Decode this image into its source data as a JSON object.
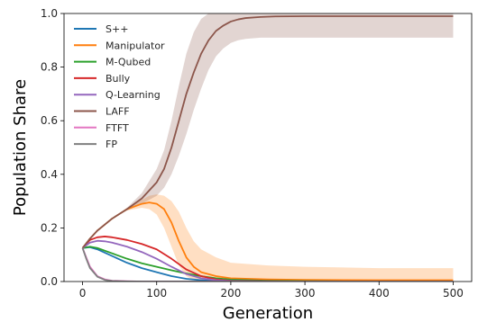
{
  "chart_data": {
    "type": "line",
    "xlabel": "Generation",
    "ylabel": "Population Share",
    "xlim": [
      -25,
      525
    ],
    "ylim": [
      0,
      1.0
    ],
    "xticks": [
      0,
      100,
      200,
      300,
      400,
      500
    ],
    "xtick_labels": [
      "0",
      "100",
      "200",
      "300",
      "400",
      "500"
    ],
    "yticks": [
      0,
      0.2,
      0.4,
      0.6,
      0.8,
      1.0
    ],
    "ytick_labels": [
      "0.0",
      "0.2",
      "0.4",
      "0.6",
      "0.8",
      "1.0"
    ],
    "grid": false,
    "legend_position": "top-left",
    "series": [
      {
        "name": "S++",
        "color": "#1f77b4",
        "x": [
          0,
          10,
          20,
          40,
          60,
          80,
          100,
          120,
          140,
          160,
          180,
          200,
          250,
          300,
          400,
          500
        ],
        "y": [
          0.125,
          0.128,
          0.12,
          0.095,
          0.07,
          0.05,
          0.035,
          0.02,
          0.01,
          0.005,
          0.002,
          0.001,
          0,
          0,
          0,
          0
        ],
        "band_lower": null,
        "band_upper": null
      },
      {
        "name": "Manipulator",
        "color": "#ff7f0e",
        "x": [
          0,
          10,
          20,
          40,
          60,
          80,
          90,
          100,
          110,
          120,
          130,
          140,
          150,
          160,
          180,
          200,
          250,
          300,
          400,
          500
        ],
        "y": [
          0.125,
          0.16,
          0.19,
          0.235,
          0.27,
          0.29,
          0.295,
          0.29,
          0.27,
          0.22,
          0.15,
          0.09,
          0.055,
          0.035,
          0.02,
          0.012,
          0.008,
          0.006,
          0.005,
          0.005
        ],
        "band_lower": [
          0.125,
          0.16,
          0.19,
          0.235,
          0.265,
          0.275,
          0.27,
          0.25,
          0.2,
          0.13,
          0.06,
          0.02,
          0.005,
          0.0,
          0.0,
          0.0,
          0.0,
          0.0,
          0.0,
          0.0
        ],
        "band_upper": [
          0.125,
          0.16,
          0.19,
          0.235,
          0.275,
          0.305,
          0.32,
          0.325,
          0.32,
          0.3,
          0.26,
          0.2,
          0.15,
          0.12,
          0.09,
          0.07,
          0.06,
          0.055,
          0.05,
          0.05
        ]
      },
      {
        "name": "M-Qubed",
        "color": "#2ca02c",
        "x": [
          0,
          10,
          20,
          40,
          60,
          80,
          100,
          120,
          140,
          160,
          180,
          200,
          250,
          300,
          400,
          500
        ],
        "y": [
          0.125,
          0.13,
          0.125,
          0.105,
          0.085,
          0.068,
          0.055,
          0.042,
          0.03,
          0.02,
          0.012,
          0.007,
          0.003,
          0.001,
          0,
          0
        ],
        "band_lower": null,
        "band_upper": null
      },
      {
        "name": "Bully",
        "color": "#d62728",
        "x": [
          0,
          10,
          20,
          30,
          40,
          60,
          80,
          100,
          120,
          140,
          160,
          180,
          200,
          250,
          300,
          400,
          500
        ],
        "y": [
          0.125,
          0.155,
          0.165,
          0.168,
          0.165,
          0.155,
          0.14,
          0.12,
          0.085,
          0.045,
          0.02,
          0.008,
          0.003,
          0.001,
          0,
          0,
          0
        ],
        "band_lower": null,
        "band_upper": null
      },
      {
        "name": "Q-Learning",
        "color": "#9467bd",
        "x": [
          0,
          10,
          20,
          30,
          40,
          60,
          80,
          100,
          120,
          140,
          160,
          180,
          200,
          250,
          300,
          400,
          500
        ],
        "y": [
          0.125,
          0.145,
          0.152,
          0.15,
          0.145,
          0.13,
          0.11,
          0.085,
          0.055,
          0.028,
          0.012,
          0.005,
          0.002,
          0,
          0,
          0,
          0
        ],
        "band_lower": null,
        "band_upper": null
      },
      {
        "name": "LAFF",
        "color": "#8c564b",
        "x": [
          0,
          10,
          20,
          40,
          60,
          80,
          100,
          110,
          120,
          130,
          140,
          150,
          160,
          170,
          180,
          190,
          200,
          210,
          220,
          240,
          260,
          300,
          400,
          500
        ],
        "y": [
          0.125,
          0.16,
          0.19,
          0.235,
          0.27,
          0.31,
          0.37,
          0.42,
          0.5,
          0.6,
          0.7,
          0.78,
          0.85,
          0.9,
          0.935,
          0.955,
          0.97,
          0.978,
          0.983,
          0.987,
          0.989,
          0.99,
          0.99,
          0.99
        ],
        "band_lower": [
          0.125,
          0.16,
          0.19,
          0.235,
          0.265,
          0.29,
          0.32,
          0.35,
          0.4,
          0.47,
          0.55,
          0.64,
          0.72,
          0.79,
          0.84,
          0.87,
          0.89,
          0.9,
          0.905,
          0.91,
          0.91,
          0.91,
          0.91,
          0.91
        ],
        "band_upper": [
          0.125,
          0.16,
          0.19,
          0.235,
          0.275,
          0.33,
          0.42,
          0.49,
          0.6,
          0.73,
          0.85,
          0.93,
          0.98,
          1.0,
          1.0,
          1.0,
          1.0,
          1.0,
          1.0,
          1.0,
          1.0,
          1.0,
          1.0,
          1.0
        ]
      },
      {
        "name": "FTFT",
        "color": "#e377c2",
        "x": [
          0,
          5,
          10,
          20,
          30,
          40,
          60,
          80,
          100,
          150,
          200,
          300,
          400,
          500
        ],
        "y": [
          0.125,
          0.09,
          0.055,
          0.02,
          0.008,
          0.003,
          0.001,
          0,
          0,
          0,
          0,
          0,
          0,
          0
        ],
        "band_lower": null,
        "band_upper": null
      },
      {
        "name": "FP",
        "color": "#7f7f7f",
        "x": [
          0,
          5,
          10,
          20,
          30,
          40,
          60,
          80,
          100,
          150,
          200,
          300,
          400,
          500
        ],
        "y": [
          0.125,
          0.085,
          0.05,
          0.018,
          0.006,
          0.002,
          0.0005,
          0,
          0,
          0,
          0,
          0,
          0,
          0
        ],
        "band_lower": null,
        "band_upper": null
      }
    ]
  }
}
